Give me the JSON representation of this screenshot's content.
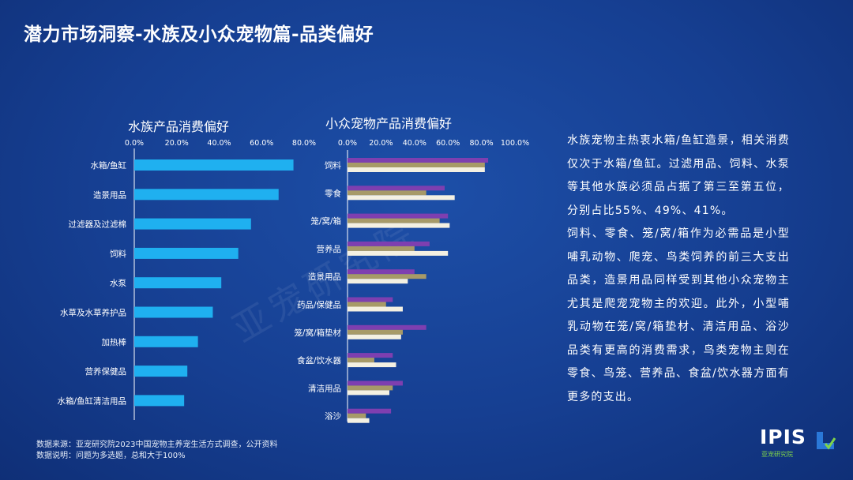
{
  "page_title": "潜力市场洞察-水族及小众宠物篇-品类偏好",
  "watermark": "亚宠研究院",
  "description": [
    "水族宠物主热衷水箱/鱼缸造景，相关消费仅次于水箱/鱼缸。过滤用品、饲料、水泵等其他水族必须品占据了第三至第五位，分别占比55%、49%、41%。",
    "饲料、零食、笼/窝/箱作为必需品是小型哺乳动物、爬宠、鸟类饲养的前三大支出品类，造景用品同样受到其他小众宠物主尤其是爬宠宠物主的欢迎。此外，小型哺乳动物在笼/窝/箱垫材、清洁用品、浴沙品类有更高的消费需求，鸟类宠物主则在零食、鸟笼、营养品、食盆/饮水器方面有更多的支出。"
  ],
  "footer": {
    "source": "数据来源：亚宠研究院2023中国宠物主养宠生活方式调查，公开资料",
    "note": "数据说明：问题为多选题，总和大于100%"
  },
  "logo": {
    "text": "IPIS",
    "sub": "亚宠研究院"
  },
  "colors": {
    "aquatic_bar": "#1fb0f0",
    "series1": "#7e3fb0",
    "series2": "#a79a68",
    "series3": "#f4f0e2",
    "axis": "#ffffff"
  },
  "chart_data": [
    {
      "type": "bar",
      "orientation": "horizontal",
      "title": "水族产品消费偏好",
      "categories": [
        "水箱/鱼缸",
        "造景用品",
        "过滤器及过滤棉",
        "饲料",
        "水泵",
        "水草及水草养护品",
        "加热棒",
        "营养保健品",
        "水箱/鱼缸清洁用品"
      ],
      "values": [
        75,
        68,
        55,
        49,
        41,
        37,
        30,
        25,
        23.5
      ],
      "xlim": [
        0,
        80
      ],
      "xticks": [
        "0.0%",
        "20.0%",
        "40.0%",
        "60.0%",
        "80.0%"
      ],
      "grid": false,
      "legend": "none"
    },
    {
      "type": "bar",
      "orientation": "horizontal",
      "title": "小众宠物产品消费偏好",
      "categories": [
        "饲料",
        "零食",
        "笼/窝/箱",
        "营养品",
        "造景用品",
        "药品/保健品",
        "笼/窝/箱垫材",
        "食盆/饮水器",
        "清洁用品",
        "浴沙"
      ],
      "series": [
        {
          "values": [
            84,
            58,
            60,
            49,
            40,
            27,
            47,
            27,
            33,
            26
          ]
        },
        {
          "values": [
            82,
            47,
            55,
            40,
            47,
            23,
            33,
            16,
            27,
            11
          ]
        },
        {
          "values": [
            82,
            64,
            61,
            60,
            36,
            33,
            32,
            29,
            25,
            13
          ]
        }
      ],
      "xlim": [
        0,
        100
      ],
      "xticks": [
        "0.0%",
        "20.0%",
        "40.0%",
        "60.0%",
        "80.0%",
        "100.0%"
      ],
      "grid": false,
      "legend": "none"
    }
  ]
}
